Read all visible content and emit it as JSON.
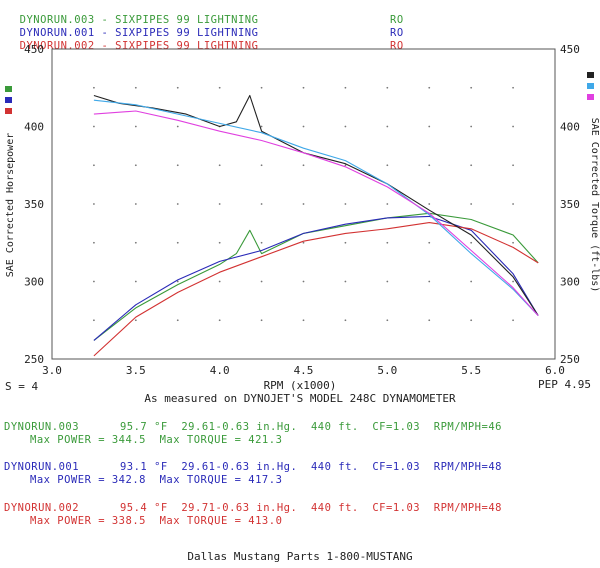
{
  "legend": [
    {
      "label": "DYNORUN.003 - SIXPIPES 99 LIGHTNING",
      "tag": "RO",
      "color": "#3a9a3a"
    },
    {
      "label": "DYNORUN.001 - SIXPIPES 99 LIGHTNING",
      "tag": "RO",
      "color": "#2a2ab8"
    },
    {
      "label": "DYNORUN.002 - SIXPIPES 99 LIGHTNING",
      "tag": "RO",
      "color": "#d23232"
    }
  ],
  "s_value": "S = 4",
  "pep_value": "PEP 4.95",
  "caption": "As measured on DYNOJET'S MODEL 248C DYNAMOMETER",
  "runs": [
    {
      "header": "DYNORUN.003      95.7 °F  29.61-0.63 in.Hg.  440 ft.  CF=1.03  RPM/MPH=46",
      "max": "Max POWER = 344.5  Max TORQUE = 421.3",
      "color": "#3a9a3a"
    },
    {
      "header": "DYNORUN.001      93.1 °F  29.61-0.63 in.Hg.  440 ft.  CF=1.03  RPM/MPH=48",
      "max": "Max POWER = 342.8  Max TORQUE = 417.3",
      "color": "#2a2ab8"
    },
    {
      "header": "DYNORUN.002      95.4 °F  29.71-0.63 in.Hg.  440 ft.  CF=1.03  RPM/MPH=48",
      "max": "Max POWER = 338.5  Max TORQUE = 413.0",
      "color": "#d23232"
    }
  ],
  "footer": "Dallas Mustang Parts 1-800-MUSTANG",
  "colors": {
    "green": "#3a9a3a",
    "blue": "#2a2ab8",
    "red": "#d23232",
    "black": "#222222",
    "cyan": "#3fa8e8",
    "magenta": "#e040e0"
  },
  "chart_data": {
    "type": "line",
    "xlabel": "RPM (x1000)",
    "ylabel_left": "SAE Corrected Horsepower",
    "ylabel_right": "SAE Corrected Torque (ft-lbs)",
    "xlim": [
      3.0,
      6.0
    ],
    "ylim": [
      250,
      450
    ],
    "x_ticks": [
      "3.0",
      "3.5",
      "4.0",
      "4.5",
      "5.0",
      "5.5",
      "6.0"
    ],
    "y_ticks_left": [
      "450",
      "400",
      "350",
      "300",
      "250"
    ],
    "y_ticks_right": [
      "450",
      "400",
      "350",
      "300",
      "250"
    ],
    "grid": true,
    "series": [
      {
        "name": "DYNORUN.003",
        "kind": "power",
        "color": "#3a9a3a",
        "x": [
          3.25,
          3.5,
          3.75,
          4.0,
          4.1,
          4.18,
          4.25,
          4.5,
          4.75,
          5.0,
          5.25,
          5.5,
          5.75,
          5.9
        ],
        "y": [
          262,
          283,
          298,
          311,
          318,
          333,
          318,
          331,
          336,
          341,
          344,
          340,
          330,
          312
        ]
      },
      {
        "name": "DYNORUN.001",
        "kind": "power",
        "color": "#2a2ab8",
        "x": [
          3.25,
          3.5,
          3.75,
          4.0,
          4.25,
          4.5,
          4.75,
          5.0,
          5.25,
          5.5,
          5.75,
          5.9
        ],
        "y": [
          262,
          285,
          301,
          313,
          320,
          331,
          337,
          341,
          342,
          333,
          305,
          278
        ]
      },
      {
        "name": "DYNORUN.002",
        "kind": "power",
        "color": "#d23232",
        "x": [
          3.25,
          3.5,
          3.75,
          4.0,
          4.25,
          4.5,
          4.75,
          5.0,
          5.25,
          5.5,
          5.75,
          5.9
        ],
        "y": [
          252,
          277,
          293,
          306,
          316,
          326,
          331,
          334,
          338,
          334,
          322,
          312
        ]
      },
      {
        "name": "DYNORUN.003",
        "kind": "torque",
        "color": "#222222",
        "x": [
          3.25,
          3.4,
          3.6,
          3.8,
          4.0,
          4.1,
          4.18,
          4.25,
          4.5,
          4.75,
          5.0,
          5.25,
          5.5,
          5.75,
          5.9
        ],
        "y": [
          420,
          415,
          412,
          408,
          400,
          403,
          420,
          397,
          383,
          376,
          363,
          346,
          330,
          303,
          278
        ]
      },
      {
        "name": "DYNORUN.001",
        "kind": "torque",
        "color": "#3fa8e8",
        "x": [
          3.25,
          3.5,
          3.75,
          4.0,
          4.25,
          4.5,
          4.75,
          5.0,
          5.25,
          5.5,
          5.75,
          5.9
        ],
        "y": [
          417,
          414,
          408,
          402,
          396,
          386,
          378,
          363,
          343,
          318,
          295,
          278
        ]
      },
      {
        "name": "DYNORUN.002",
        "kind": "torque",
        "color": "#e040e0",
        "x": [
          3.25,
          3.5,
          3.75,
          4.0,
          4.25,
          4.5,
          4.75,
          5.0,
          5.25,
          5.5,
          5.75,
          5.9
        ],
        "y": [
          408,
          410,
          404,
          397,
          391,
          383,
          374,
          361,
          344,
          320,
          296,
          278
        ]
      }
    ]
  }
}
